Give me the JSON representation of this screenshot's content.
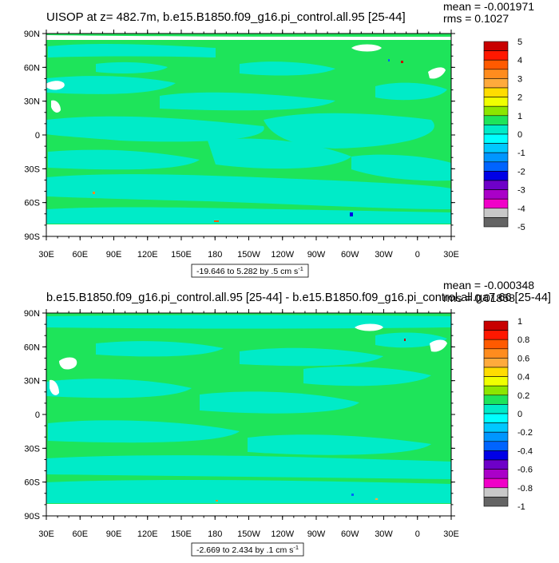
{
  "panels": [
    {
      "title": "UISOP at z= 482.7m, b.e15.B1850.f09_g16.pi_control.all.95 [25-44]",
      "mean": "mean = -0.001971",
      "rms": "rms = 0.1027",
      "range_label": "-19.646 to 5.282 by .5 cm s",
      "range_sup": "-1",
      "colorbar_labels": [
        "5",
        "4",
        "3",
        "2",
        "1",
        "0",
        "-1",
        "-2",
        "-3",
        "-4",
        "-5"
      ]
    },
    {
      "title": "b.e15.B1850.f09_g16.pi_control.all.95 [25-44] - b.e15.B1850.f09_g16.pi_control.all.ga7.66 [25-44]",
      "mean": "mean = -0.000348",
      "rms": "rms = 0.01858",
      "range_label": "-2.669 to 2.434 by .1 cm s",
      "range_sup": "-1",
      "colorbar_labels": [
        "1",
        "0.8",
        "0.6",
        "0.4",
        "0.2",
        "0",
        "-0.2",
        "-0.4",
        "-0.6",
        "-0.8",
        "-1"
      ]
    }
  ],
  "map": {
    "lat_labels": [
      "90N",
      "60N",
      "30N",
      "0",
      "30S",
      "60S",
      "90S"
    ],
    "lon_labels": [
      "30E",
      "60E",
      "90E",
      "120E",
      "150E",
      "180",
      "150W",
      "120W",
      "90W",
      "60W",
      "30W",
      "0",
      "30E"
    ],
    "projection": "cylindrical equidistant",
    "land_color": "#ffffff",
    "background_color": "#1ee45a"
  },
  "colorbar_colors": [
    "#c80000",
    "#ff1800",
    "#ff5a00",
    "#ff8c1e",
    "#ffaa3c",
    "#ffdc00",
    "#f0ff00",
    "#8ce600",
    "#1ee45a",
    "#00ebc8",
    "#00ffff",
    "#00c8ff",
    "#0096ff",
    "#0064ff",
    "#0000e6",
    "#6e00c8",
    "#aa00c8",
    "#f000c8",
    "#c8c8c8",
    "#646464"
  ]
}
